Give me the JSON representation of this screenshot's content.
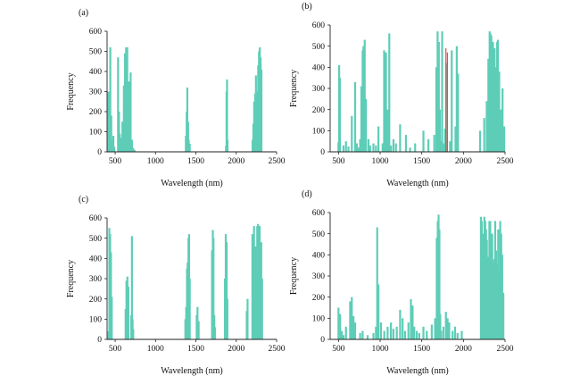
{
  "chart_data": [
    {
      "panel": "(a)",
      "type": "bar",
      "xlabel": "Wavelength (nm)",
      "ylabel": "Frequency",
      "xlim": [
        400,
        2500
      ],
      "ylim": [
        0,
        600
      ],
      "xticks": [
        500,
        1000,
        1500,
        2000,
        2500
      ],
      "yticks": [
        0,
        100,
        200,
        300,
        400,
        500,
        600
      ],
      "color": "#5ecdb7",
      "accent_color": null,
      "x": [
        415,
        428,
        440,
        452,
        466,
        478,
        490,
        536,
        548,
        558,
        572,
        590,
        608,
        622,
        636,
        650,
        660,
        672,
        684,
        692,
        708,
        722,
        740,
        1376,
        1386,
        1394,
        1404,
        1412,
        1424,
        1874,
        1880,
        1886,
        1892,
        2202,
        2212,
        2222,
        2234,
        2244,
        2252,
        2262,
        2272,
        2282,
        2292,
        2302,
        2312
      ],
      "values": [
        300,
        120,
        520,
        180,
        60,
        80,
        25,
        470,
        200,
        90,
        70,
        150,
        330,
        490,
        520,
        520,
        250,
        350,
        240,
        395,
        60,
        20,
        10,
        80,
        200,
        320,
        150,
        60,
        40,
        30,
        300,
        360,
        60,
        60,
        140,
        250,
        290,
        380,
        180,
        300,
        430,
        500,
        520,
        470,
        410
      ],
      "accent_x": [],
      "accent_values": []
    },
    {
      "panel": "(b)",
      "type": "bar",
      "xlabel": "Wavelength (nm)",
      "ylabel": "Frequency",
      "xlim": [
        400,
        2500
      ],
      "ylim": [
        0,
        600
      ],
      "xticks": [
        500,
        1000,
        1500,
        2000,
        2500
      ],
      "yticks": [
        0,
        100,
        200,
        300,
        400,
        500,
        600
      ],
      "color": "#5ecdb7",
      "accent_color": "#d9534f",
      "x": [
        500,
        508,
        518,
        560,
        590,
        620,
        660,
        700,
        720,
        740,
        760,
        775,
        790,
        800,
        815,
        830,
        860,
        880,
        920,
        950,
        980,
        1030,
        1048,
        1060,
        1070,
        1090,
        1110,
        1130,
        1160,
        1190,
        1240,
        1310,
        1360,
        1420,
        1520,
        1580,
        1650,
        1675,
        1690,
        1705,
        1718,
        1730,
        1745,
        1760,
        1780,
        1795,
        1840,
        1860,
        1905,
        1920,
        1935,
        2200,
        2250,
        2280,
        2300,
        2315,
        2325,
        2335,
        2345,
        2355,
        2365,
        2375,
        2385,
        2395,
        2405,
        2415,
        2430,
        2450,
        2470,
        2490
      ],
      "values": [
        45,
        410,
        350,
        30,
        50,
        25,
        170,
        330,
        40,
        20,
        60,
        310,
        480,
        500,
        530,
        250,
        60,
        30,
        40,
        30,
        120,
        40,
        480,
        160,
        470,
        200,
        560,
        30,
        60,
        40,
        130,
        80,
        20,
        40,
        100,
        60,
        80,
        400,
        570,
        520,
        200,
        50,
        570,
        40,
        110,
        420,
        50,
        480,
        120,
        500,
        370,
        100,
        160,
        240,
        440,
        570,
        560,
        550,
        300,
        520,
        200,
        490,
        400,
        350,
        520,
        530,
        380,
        200,
        300,
        120
      ],
      "accent_x": [
        1790,
        1808
      ],
      "accent_values": [
        490,
        470
      ]
    },
    {
      "panel": "(c)",
      "type": "bar",
      "xlabel": "Wavelength (nm)",
      "ylabel": "Frequency",
      "xlim": [
        400,
        2500
      ],
      "ylim": [
        0,
        600
      ],
      "xticks": [
        500,
        1000,
        1500,
        2000,
        2500
      ],
      "yticks": [
        0,
        100,
        200,
        300,
        400,
        500,
        600
      ],
      "color": "#5ecdb7",
      "accent_color": null,
      "x": [
        418,
        428,
        438,
        448,
        458,
        630,
        640,
        652,
        664,
        700,
        708,
        716,
        724,
        1370,
        1380,
        1390,
        1398,
        1408,
        1416,
        1424,
        1510,
        1520,
        1534,
        1700,
        1710,
        1718,
        1728,
        1736,
        1860,
        1870,
        1882,
        1890,
        2130,
        2140,
        2200,
        2210,
        2220,
        2230,
        2240,
        2250,
        2260,
        2270,
        2280,
        2290,
        2300,
        2310,
        2320
      ],
      "values": [
        40,
        550,
        520,
        430,
        210,
        150,
        290,
        310,
        260,
        120,
        510,
        100,
        50,
        100,
        160,
        350,
        380,
        500,
        520,
        300,
        120,
        160,
        90,
        440,
        540,
        500,
        120,
        60,
        300,
        520,
        480,
        200,
        140,
        200,
        520,
        480,
        560,
        300,
        460,
        400,
        560,
        570,
        420,
        560,
        450,
        480,
        300
      ],
      "accent_x": [],
      "accent_values": []
    },
    {
      "panel": "(d)",
      "type": "bar",
      "xlabel": "Wavelength (nm)",
      "ylabel": "Frequency",
      "xlim": [
        400,
        2500
      ],
      "ylim": [
        0,
        600
      ],
      "xticks": [
        500,
        1000,
        1500,
        2000,
        2500
      ],
      "yticks": [
        0,
        100,
        200,
        300,
        400,
        500,
        600
      ],
      "color": "#5ecdb7",
      "accent_color": null,
      "x": [
        500,
        520,
        540,
        560,
        590,
        640,
        660,
        680,
        700,
        760,
        790,
        850,
        920,
        950,
        965,
        980,
        1010,
        1050,
        1090,
        1130,
        1160,
        1200,
        1240,
        1270,
        1300,
        1340,
        1370,
        1390,
        1410,
        1440,
        1470,
        1520,
        1560,
        1620,
        1660,
        1680,
        1692,
        1702,
        1712,
        1722,
        1732,
        1760,
        1790,
        1810,
        1830,
        1870,
        1900,
        1930,
        1980,
        2210,
        2220,
        2232,
        2242,
        2252,
        2262,
        2272,
        2282,
        2292,
        2302,
        2312,
        2322,
        2334,
        2346,
        2358,
        2370,
        2382,
        2394,
        2406,
        2418,
        2430,
        2442,
        2454,
        2466,
        2480
      ],
      "values": [
        150,
        120,
        40,
        20,
        60,
        180,
        200,
        110,
        80,
        30,
        40,
        20,
        30,
        60,
        530,
        260,
        80,
        40,
        60,
        80,
        50,
        60,
        140,
        100,
        40,
        80,
        190,
        160,
        60,
        40,
        30,
        60,
        40,
        70,
        100,
        480,
        560,
        590,
        520,
        120,
        40,
        60,
        130,
        100,
        80,
        40,
        60,
        30,
        40,
        580,
        560,
        500,
        300,
        580,
        560,
        520,
        470,
        390,
        300,
        560,
        560,
        420,
        500,
        360,
        380,
        560,
        420,
        360,
        520,
        300,
        560,
        500,
        400,
        220
      ],
      "accent_x": [],
      "accent_values": []
    }
  ]
}
